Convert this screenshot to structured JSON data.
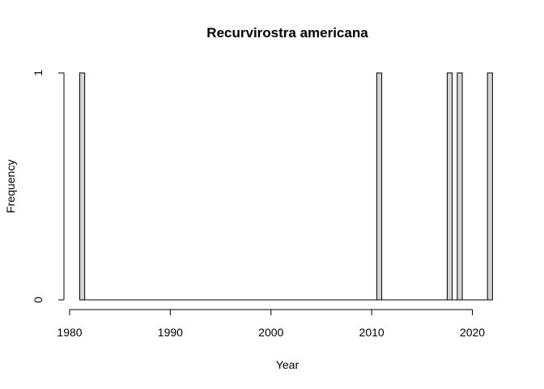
{
  "chart_data": {
    "type": "bar",
    "title": "Recurvirostra americana",
    "xlabel": "Year",
    "ylabel": "Frequency",
    "bin_width": 0.5,
    "x_start": 1981,
    "x_end": 2022,
    "x": [
      1981,
      2010.5,
      2017.5,
      2018.5,
      2021.5
    ],
    "values": [
      1,
      1,
      1,
      1,
      1
    ],
    "xlim": [
      1980,
      2022
    ],
    "ylim": [
      0,
      1
    ],
    "x_ticks": [
      "1980",
      "1990",
      "2000",
      "2010",
      "2020"
    ],
    "y_ticks": [
      "0",
      "1"
    ],
    "bar_color": "#d3d3d3",
    "grid": false
  }
}
